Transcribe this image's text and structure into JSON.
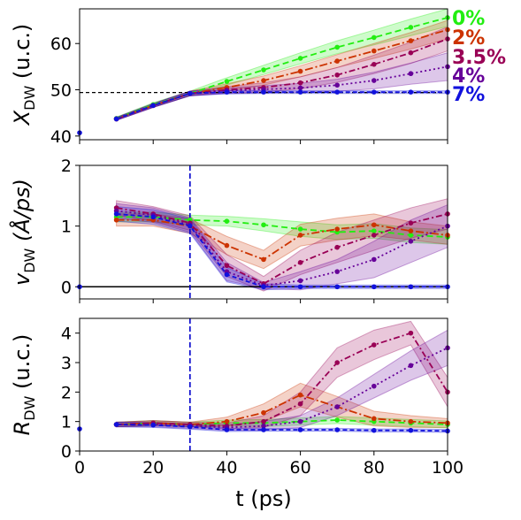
{
  "colors": {
    "0%": "#22ee11",
    "2%": "#cc3300",
    "3.5%": "#990055",
    "4%": "#660099",
    "7%": "#1111dd"
  },
  "legend": [
    "0%",
    "2%",
    "3.5%",
    "4%",
    "7%"
  ],
  "shared_x": {
    "label": "t (ps)",
    "range": [
      0,
      100
    ],
    "ticks": [
      "0",
      "20",
      "40",
      "60",
      "80",
      "100"
    ],
    "tick_values": [
      0,
      20,
      40,
      60,
      80,
      100
    ]
  },
  "chart_data": [
    {
      "type": "line",
      "ylabel": "X_DW (u.c.)",
      "ylabel_main": "X",
      "ylabel_sub": "DW",
      "ylabel_rest": " (u.c.)",
      "xlim": [
        0,
        100
      ],
      "ylim": [
        39.2,
        67.5
      ],
      "yticks": [
        40,
        50,
        60
      ],
      "ytick_labels": [
        "40",
        "50",
        "60"
      ],
      "hline": 49.4,
      "hline_color": "#000000",
      "bands": true,
      "x": [
        0,
        10,
        20,
        30,
        40,
        50,
        60,
        70,
        80,
        90,
        100
      ],
      "series": [
        {
          "name": "0%",
          "values": [
            null,
            43.8,
            46.8,
            49.2,
            51.8,
            54.3,
            56.8,
            59.2,
            61.3,
            63.5,
            65.6
          ],
          "band": [
            0.3,
            0.4,
            0.5,
            0.8,
            1.0,
            1.2,
            1.4,
            1.6,
            1.8,
            1.9
          ]
        },
        {
          "name": "2%",
          "values": [
            null,
            43.7,
            46.6,
            49.2,
            50.5,
            52.0,
            54.0,
            56.2,
            58.4,
            60.6,
            63.0
          ],
          "band": [
            0.3,
            0.4,
            0.5,
            0.8,
            1.0,
            1.2,
            1.4,
            1.6,
            1.8,
            2.0
          ]
        },
        {
          "name": "3.5%",
          "values": [
            null,
            43.7,
            46.6,
            49.2,
            50.0,
            50.5,
            51.5,
            53.2,
            55.5,
            58.0,
            61.0
          ],
          "band": [
            0.3,
            0.4,
            0.5,
            0.7,
            1.0,
            1.3,
            1.6,
            2.0,
            2.3,
            2.6
          ]
        },
        {
          "name": "4%",
          "values": [
            null,
            43.7,
            46.6,
            49.2,
            49.8,
            50.1,
            50.4,
            51.0,
            52.0,
            53.5,
            55.0
          ],
          "band": [
            0.3,
            0.4,
            0.5,
            0.6,
            0.8,
            1.0,
            1.3,
            1.8,
            2.3,
            3.0
          ]
        },
        {
          "name": "7%",
          "values": [
            40.7,
            43.7,
            46.6,
            49.2,
            49.5,
            49.5,
            49.5,
            49.5,
            49.5,
            49.5,
            49.5
          ],
          "band": [
            0.3,
            0.4,
            0.5,
            0.4,
            0.3,
            0.3,
            0.3,
            0.3,
            0.3,
            0.3
          ]
        }
      ]
    },
    {
      "type": "line",
      "ylabel": "v_DW (Å/ps)",
      "ylabel_main": "v",
      "ylabel_sub": "DW",
      "ylabel_rest": " (Å/ps)",
      "xlim": [
        0,
        100
      ],
      "ylim": [
        -0.2,
        2.0
      ],
      "yticks": [
        0,
        1,
        2
      ],
      "ytick_labels": [
        "0",
        "1",
        "2"
      ],
      "hline": 0,
      "hline_color": "#000000",
      "vline": 30,
      "vline_color": "#0000cc",
      "bands": true,
      "x": [
        0,
        10,
        20,
        30,
        40,
        50,
        60,
        70,
        80,
        90,
        100
      ],
      "series": [
        {
          "name": "0%",
          "values": [
            null,
            1.15,
            1.15,
            1.1,
            1.08,
            1.02,
            0.95,
            0.9,
            0.92,
            0.85,
            0.82
          ],
          "band": [
            0.08,
            0.08,
            0.08,
            0.08,
            0.1,
            0.12,
            0.12,
            0.12,
            0.12,
            0.12
          ]
        },
        {
          "name": "2%",
          "values": [
            null,
            1.1,
            1.1,
            1.0,
            0.68,
            0.45,
            0.85,
            0.95,
            1.02,
            0.92,
            0.85
          ],
          "band": [
            0.1,
            0.1,
            0.12,
            0.15,
            0.15,
            0.18,
            0.18,
            0.18,
            0.15,
            0.15
          ]
        },
        {
          "name": "3.5%",
          "values": [
            null,
            1.3,
            1.2,
            1.05,
            0.35,
            0.05,
            0.4,
            0.65,
            0.85,
            1.05,
            1.2
          ],
          "band": [
            0.12,
            0.12,
            0.12,
            0.18,
            0.12,
            0.2,
            0.25,
            0.25,
            0.25,
            0.25
          ]
        },
        {
          "name": "4%",
          "values": [
            null,
            1.25,
            1.18,
            1.02,
            0.25,
            0.02,
            0.1,
            0.25,
            0.45,
            0.75,
            1.0
          ],
          "band": [
            0.12,
            0.12,
            0.12,
            0.15,
            0.05,
            0.15,
            0.2,
            0.3,
            0.35,
            0.35
          ]
        },
        {
          "name": "7%",
          "values": [
            0,
            1.2,
            1.15,
            1.0,
            0.2,
            0.0,
            0.0,
            0.0,
            0.0,
            0.0,
            0.0
          ],
          "band": [
            0.12,
            0.12,
            0.12,
            0.12,
            0.05,
            0.03,
            0.03,
            0.03,
            0.03,
            0.03
          ]
        }
      ]
    },
    {
      "type": "line",
      "ylabel": "R_DW (u.c.)",
      "ylabel_main": "R",
      "ylabel_sub": "DW",
      "ylabel_rest": " (u.c.)",
      "xlim": [
        0,
        100
      ],
      "ylim": [
        0,
        4.5
      ],
      "yticks": [
        0,
        1,
        2,
        3,
        4
      ],
      "ytick_labels": [
        "0",
        "1",
        "2",
        "3",
        "4"
      ],
      "vline": 30,
      "vline_color": "#0000cc",
      "bands": true,
      "x": [
        0,
        10,
        20,
        30,
        40,
        50,
        60,
        70,
        80,
        90,
        100
      ],
      "series": [
        {
          "name": "0%",
          "values": [
            null,
            0.9,
            0.95,
            0.9,
            0.95,
            0.95,
            1.0,
            1.05,
            1.0,
            0.95,
            0.9
          ],
          "band": [
            0.08,
            0.08,
            0.08,
            0.1,
            0.12,
            0.12,
            0.12,
            0.12,
            0.12,
            0.12
          ]
        },
        {
          "name": "2%",
          "values": [
            null,
            0.9,
            0.95,
            0.9,
            1.0,
            1.3,
            1.9,
            1.5,
            1.1,
            1.0,
            0.95
          ],
          "band": [
            0.08,
            0.08,
            0.08,
            0.15,
            0.3,
            0.4,
            0.35,
            0.25,
            0.2,
            0.15
          ]
        },
        {
          "name": "3.5%",
          "values": [
            null,
            0.9,
            0.95,
            0.9,
            0.85,
            1.0,
            1.6,
            3.0,
            3.6,
            4.0,
            2.0
          ],
          "band": [
            0.08,
            0.08,
            0.08,
            0.1,
            0.2,
            0.4,
            0.5,
            0.5,
            0.4,
            0.5
          ]
        },
        {
          "name": "4%",
          "values": [
            null,
            0.9,
            0.9,
            0.85,
            0.8,
            0.85,
            1.0,
            1.5,
            2.2,
            2.9,
            3.5
          ],
          "band": [
            0.08,
            0.08,
            0.08,
            0.1,
            0.15,
            0.2,
            0.3,
            0.4,
            0.5,
            0.6
          ]
        },
        {
          "name": "7%",
          "values": [
            0.75,
            0.9,
            0.88,
            0.82,
            0.72,
            0.72,
            0.72,
            0.72,
            0.7,
            0.7,
            0.68
          ],
          "band": [
            0.08,
            0.08,
            0.08,
            0.06,
            0.05,
            0.05,
            0.05,
            0.05,
            0.05,
            0.05
          ]
        }
      ]
    }
  ]
}
